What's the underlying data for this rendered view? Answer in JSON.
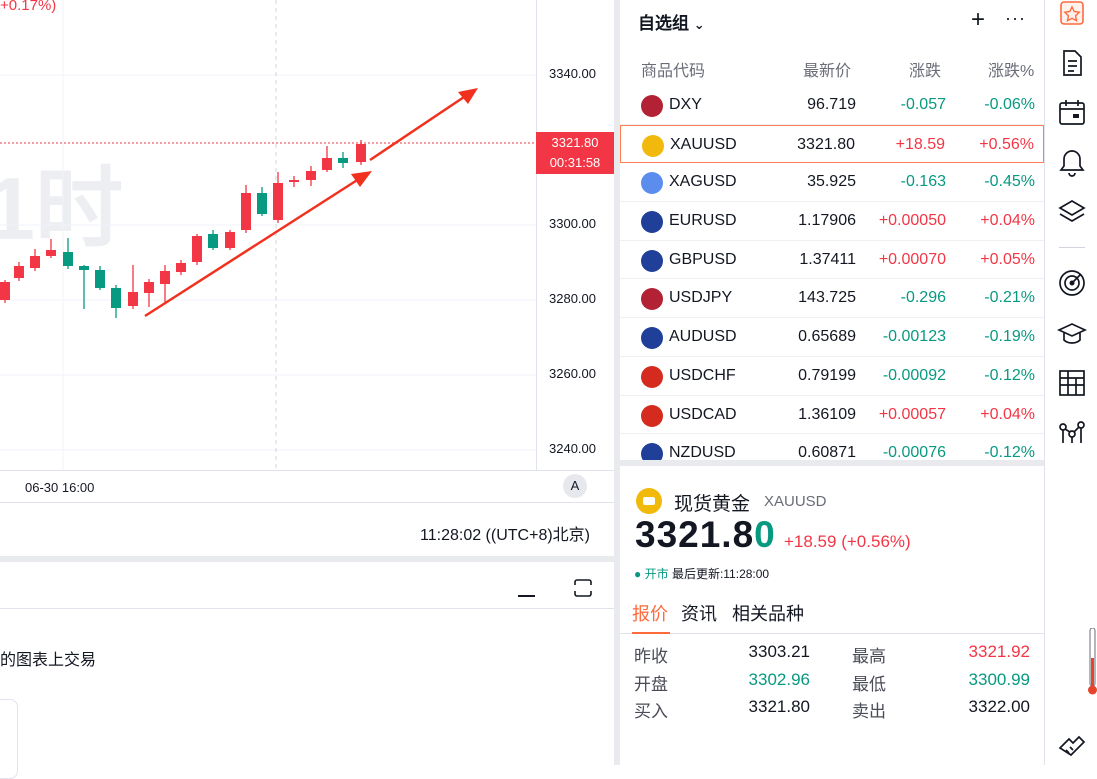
{
  "chart": {
    "top_pct": "+0.17%)",
    "watermark": "1时",
    "price_ticks": [
      "3340.00",
      "3300.00",
      "3280.00",
      "3260.00",
      "3240.00"
    ],
    "last_price": "3321.80",
    "countdown": "00:31:58",
    "time_label": "06-30 16:00",
    "auto_label": "A",
    "clock": "11:28:02 ((UTC+8)北京)"
  },
  "bottom_panel": {
    "text": "的图表上交易"
  },
  "watchlist": {
    "title": "自选组",
    "headers": {
      "symbol": "商品代码",
      "last": "最新价",
      "change": "涨跌",
      "change_pct": "涨跌%"
    },
    "rows": [
      {
        "symbol": "DXY",
        "last": "96.719",
        "change": "-0.057",
        "change_pct": "-0.06%",
        "dir": "down",
        "flag_color": "#b22234"
      },
      {
        "symbol": "XAUUSD",
        "last": "3321.80",
        "change": "+18.59",
        "change_pct": "+0.56%",
        "dir": "up",
        "flag_color": "#f0b90b",
        "selected": true
      },
      {
        "symbol": "XAGUSD",
        "last": "35.925",
        "change": "-0.163",
        "change_pct": "-0.45%",
        "dir": "down",
        "flag_color": "#5b8def"
      },
      {
        "symbol": "EURUSD",
        "last": "1.17906",
        "change": "+0.00050",
        "change_pct": "+0.04%",
        "dir": "up",
        "flag_color": "#1f3f99"
      },
      {
        "symbol": "GBPUSD",
        "last": "1.37411",
        "change": "+0.00070",
        "change_pct": "+0.05%",
        "dir": "up",
        "flag_color": "#1f3f99"
      },
      {
        "symbol": "USDJPY",
        "last": "143.725",
        "change": "-0.296",
        "change_pct": "-0.21%",
        "dir": "down",
        "flag_color": "#b22234"
      },
      {
        "symbol": "AUDUSD",
        "last": "0.65689",
        "change": "-0.00123",
        "change_pct": "-0.19%",
        "dir": "down",
        "flag_color": "#1f3f99"
      },
      {
        "symbol": "USDCHF",
        "last": "0.79199",
        "change": "-0.00092",
        "change_pct": "-0.12%",
        "dir": "down",
        "flag_color": "#d52b1e"
      },
      {
        "symbol": "USDCAD",
        "last": "1.36109",
        "change": "+0.00057",
        "change_pct": "+0.04%",
        "dir": "up",
        "flag_color": "#d52b1e"
      },
      {
        "symbol": "NZDUSD",
        "last": "0.60871",
        "change": "-0.00076",
        "change_pct": "-0.12%",
        "dir": "down",
        "flag_color": "#1f3f99"
      }
    ]
  },
  "detail": {
    "name": "现货黄金",
    "symbol": "XAUUSD",
    "price_main": "3321.8",
    "price_last_digit": "0",
    "change": "+18.59",
    "change_pct": "(+0.56%)",
    "status_open": "● 开市",
    "status_updated": "最后更新:11:28:00",
    "tabs": [
      "报价",
      "资讯",
      "相关品种"
    ],
    "stats": [
      {
        "l1": "昨收",
        "v1": "3303.21",
        "c1": "#131722",
        "l2": "最高",
        "v2": "3321.92",
        "c2": "#f23645"
      },
      {
        "l1": "开盘",
        "v1": "3302.96",
        "c1": "#089981",
        "l2": "最低",
        "v2": "3300.99",
        "c2": "#089981"
      },
      {
        "l1": "买入",
        "v1": "3321.80",
        "c1": "#131722",
        "l2": "卖出",
        "v2": "3322.00",
        "c2": "#131722"
      }
    ]
  },
  "colors": {
    "up": "#f23645",
    "down": "#089981",
    "accent": "#ff6a3d"
  },
  "toolbar": {
    "icons": [
      "watchlist-star-icon",
      "news-icon",
      "calendar-icon",
      "alert-bell-icon",
      "layers-icon",
      "target-icon",
      "education-icon",
      "table-icon",
      "network-icon",
      "handshake-icon"
    ]
  }
}
